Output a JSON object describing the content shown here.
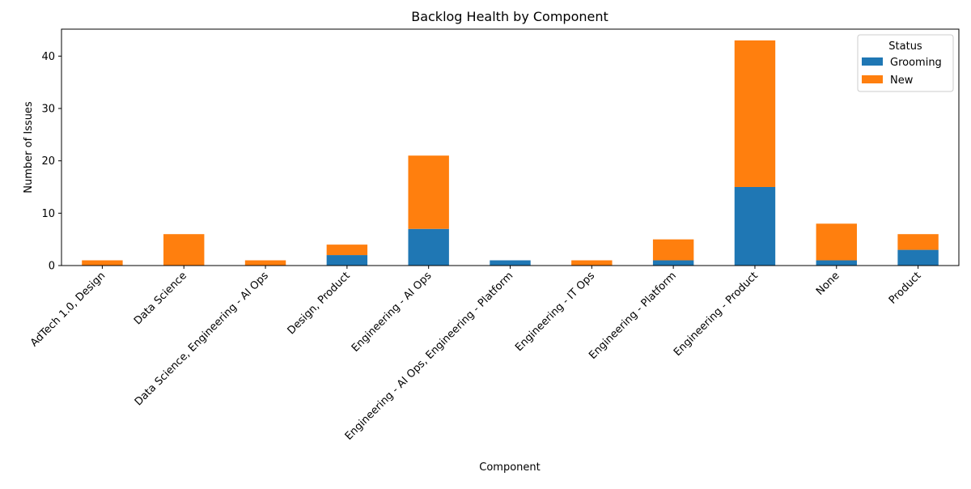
{
  "chart_data": {
    "type": "bar",
    "stacked": true,
    "title": "Backlog Health by Component",
    "xlabel": "Component",
    "ylabel": "Number of Issues",
    "categories": [
      "AdTech 1.0, Design",
      "Data Science",
      "Data Science, Engineering - AI Ops",
      "Design, Product",
      "Engineering - AI Ops",
      "Engineering - AI Ops, Engineering - Platform",
      "Engineering - IT Ops",
      "Engineering - Platform",
      "Engineering - Product",
      "None",
      "Product"
    ],
    "series": [
      {
        "name": "Grooming",
        "color": "#1f77b4",
        "values": [
          0,
          0,
          0,
          2,
          7,
          1,
          0,
          1,
          15,
          1,
          3
        ]
      },
      {
        "name": "New",
        "color": "#ff7f0e",
        "values": [
          1,
          6,
          1,
          2,
          14,
          0,
          1,
          4,
          28,
          7,
          3
        ]
      }
    ],
    "ylim": [
      0,
      45.15
    ],
    "yticks": [
      0,
      10,
      20,
      30,
      40
    ],
    "legend": {
      "title": "Status",
      "position": "top-right"
    },
    "grid": false
  }
}
